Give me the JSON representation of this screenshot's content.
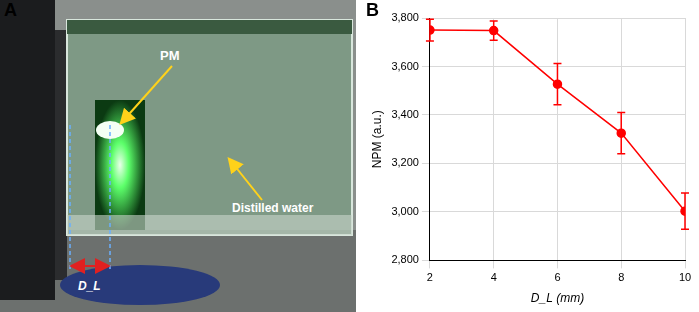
{
  "panels": [
    {
      "label": "A",
      "annotations": [
        "PM",
        "Distilled water",
        "D_L"
      ]
    },
    {
      "label": "B"
    }
  ],
  "chart_data": {
    "type": "line",
    "x": [
      2,
      4,
      6,
      8,
      10
    ],
    "values": [
      3750,
      3748,
      3527,
      3325,
      3003
    ],
    "errors": [
      45,
      40,
      85,
      85,
      75
    ],
    "color": "#ff0000",
    "marker": "circle",
    "line_style": "solid",
    "x_label": "D_L (mm)",
    "y_label": "NPM (a.u.)",
    "xlim": [
      2,
      10
    ],
    "xticks": [
      2,
      4,
      6,
      8,
      10
    ],
    "ylim": [
      2800,
      3800
    ],
    "yticks": [
      2800,
      3000,
      3200,
      3400,
      3600,
      3800
    ],
    "grid": true
  }
}
